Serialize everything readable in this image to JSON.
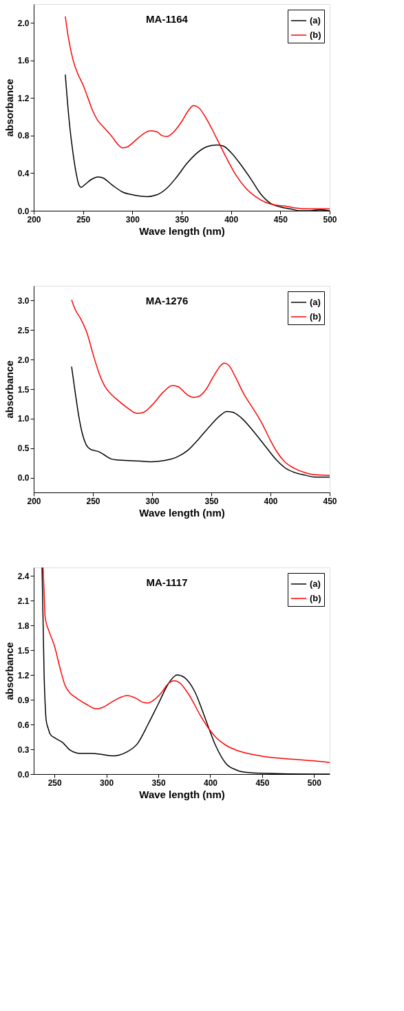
{
  "chart_data": [
    {
      "type": "line",
      "title": "MA-1164",
      "xlabel": "Wave length (nm)",
      "ylabel": "absorbance",
      "xlim": [
        200,
        500
      ],
      "xticks": [
        200,
        250,
        300,
        350,
        400,
        450,
        500
      ],
      "ylim": [
        0,
        2.2
      ],
      "yticks": [
        {
          "value": 0,
          "label": "0.0"
        },
        {
          "value": 0.4,
          "label": "0.4"
        },
        {
          "value": 0.8,
          "label": "0.8"
        },
        {
          "value": 1.2,
          "label": "1.2"
        },
        {
          "value": 1.6,
          "label": "1.6"
        },
        {
          "value": 2.0,
          "label": "2.0"
        }
      ],
      "grid": false,
      "legend": "top right",
      "marker": "none",
      "line_style": "solid",
      "series": [
        {
          "name": "(a)",
          "color": "#000000",
          "x": [
            232,
            236,
            240,
            243,
            246,
            248,
            252,
            258,
            265,
            270,
            280,
            290,
            300,
            315,
            325,
            335,
            345,
            355,
            365,
            375,
            385,
            392,
            400,
            410,
            420,
            430,
            440,
            450,
            460,
            470,
            480,
            490,
            500
          ],
          "values": [
            1.45,
            0.95,
            0.6,
            0.4,
            0.27,
            0.25,
            0.28,
            0.33,
            0.36,
            0.35,
            0.27,
            0.2,
            0.17,
            0.15,
            0.17,
            0.24,
            0.36,
            0.5,
            0.61,
            0.68,
            0.7,
            0.69,
            0.62,
            0.49,
            0.34,
            0.18,
            0.08,
            0.04,
            0.02,
            0.0,
            0.0,
            0.01,
            0.0
          ]
        },
        {
          "name": "(b)",
          "color": "#ff0000",
          "x": [
            232,
            235,
            240,
            245,
            250,
            255,
            260,
            265,
            270,
            280,
            285,
            290,
            295,
            300,
            310,
            318,
            325,
            330,
            335,
            340,
            350,
            357,
            362,
            367,
            375,
            385,
            395,
            405,
            415,
            425,
            435,
            445,
            455,
            465,
            480,
            500
          ],
          "values": [
            2.07,
            1.85,
            1.6,
            1.45,
            1.34,
            1.2,
            1.06,
            0.96,
            0.9,
            0.78,
            0.71,
            0.67,
            0.68,
            0.72,
            0.81,
            0.85,
            0.84,
            0.8,
            0.79,
            0.82,
            0.95,
            1.07,
            1.12,
            1.1,
            0.98,
            0.78,
            0.57,
            0.38,
            0.24,
            0.15,
            0.09,
            0.06,
            0.05,
            0.03,
            0.02,
            0.02
          ]
        }
      ]
    },
    {
      "type": "line",
      "title": "MA-1276",
      "xlabel": "Wave length (nm)",
      "ylabel": "absorbance",
      "xlim": [
        200,
        450
      ],
      "xticks": [
        200,
        250,
        300,
        350,
        400,
        450
      ],
      "ylim": [
        -0.25,
        3.25
      ],
      "yticks": [
        {
          "value": 0,
          "label": "0.0"
        },
        {
          "value": 0.5,
          "label": "0.5"
        },
        {
          "value": 1.0,
          "label": "1.0"
        },
        {
          "value": 1.5,
          "label": "1.5"
        },
        {
          "value": 2.0,
          "label": "2.0"
        },
        {
          "value": 2.5,
          "label": "2.5"
        },
        {
          "value": 3.0,
          "label": "3.0"
        }
      ],
      "grid": false,
      "legend": "top right",
      "marker": "none",
      "line_style": "solid",
      "series": [
        {
          "name": "(a)",
          "color": "#000000",
          "x": [
            232,
            235,
            238,
            241,
            244,
            248,
            255,
            260,
            265,
            270,
            280,
            290,
            300,
            310,
            320,
            330,
            340,
            350,
            358,
            363,
            368,
            375,
            385,
            395,
            405,
            412,
            420,
            430,
            437,
            445,
            450
          ],
          "values": [
            1.88,
            1.45,
            1.05,
            0.75,
            0.57,
            0.48,
            0.44,
            0.38,
            0.32,
            0.3,
            0.29,
            0.28,
            0.27,
            0.29,
            0.34,
            0.46,
            0.67,
            0.9,
            1.06,
            1.12,
            1.11,
            1.02,
            0.8,
            0.55,
            0.3,
            0.17,
            0.09,
            0.04,
            0.01,
            0.01,
            0.01
          ]
        },
        {
          "name": "(b)",
          "color": "#ff0000",
          "x": [
            232,
            235,
            240,
            245,
            250,
            255,
            260,
            265,
            270,
            280,
            287,
            292,
            300,
            310,
            317,
            322,
            330,
            335,
            340,
            345,
            352,
            358,
            361,
            365,
            370,
            378,
            385,
            392,
            400,
            405,
            412,
            420,
            430,
            437,
            450
          ],
          "values": [
            3.01,
            2.85,
            2.68,
            2.45,
            2.1,
            1.78,
            1.55,
            1.42,
            1.33,
            1.17,
            1.09,
            1.1,
            1.23,
            1.46,
            1.56,
            1.54,
            1.4,
            1.36,
            1.38,
            1.48,
            1.72,
            1.9,
            1.94,
            1.9,
            1.72,
            1.4,
            1.18,
            0.95,
            0.63,
            0.45,
            0.27,
            0.16,
            0.08,
            0.05,
            0.04
          ]
        }
      ]
    },
    {
      "type": "line",
      "title": "MA-1117",
      "xlabel": "Wave length (nm)",
      "ylabel": "absorbance",
      "xlim": [
        230,
        515
      ],
      "xticks": [
        250,
        300,
        350,
        400,
        450,
        500
      ],
      "ylim": [
        0,
        2.5
      ],
      "yticks": [
        {
          "value": 0,
          "label": "0.0"
        },
        {
          "value": 0.3,
          "label": "0.3"
        },
        {
          "value": 0.6,
          "label": "0.6"
        },
        {
          "value": 0.9,
          "label": "0.9"
        },
        {
          "value": 1.2,
          "label": "1.2"
        },
        {
          "value": 1.5,
          "label": "1.5"
        },
        {
          "value": 1.8,
          "label": "1.8"
        },
        {
          "value": 2.1,
          "label": "2.1"
        },
        {
          "value": 2.4,
          "label": "2.4"
        }
      ],
      "grid": false,
      "legend": "top right",
      "marker": "none",
      "line_style": "solid",
      "series": [
        {
          "name": "(a)",
          "color": "#000000",
          "x": [
            238,
            240,
            241,
            242,
            244,
            246,
            250,
            258,
            265,
            270,
            275,
            285,
            295,
            305,
            312,
            320,
            330,
            340,
            350,
            360,
            368,
            375,
            385,
            395,
            405,
            415,
            425,
            435,
            450,
            500,
            515
          ],
          "values": [
            2.5,
            1.2,
            0.85,
            0.65,
            0.55,
            0.48,
            0.44,
            0.38,
            0.29,
            0.26,
            0.25,
            0.25,
            0.24,
            0.22,
            0.23,
            0.27,
            0.37,
            0.6,
            0.85,
            1.1,
            1.2,
            1.17,
            1.0,
            0.68,
            0.35,
            0.13,
            0.05,
            0.02,
            0.01,
            0.0,
            0.0
          ]
        },
        {
          "name": "(b)",
          "color": "#ff0000",
          "x": [
            239,
            240,
            241,
            245,
            250,
            255,
            260,
            265,
            270,
            280,
            290,
            295,
            305,
            312,
            320,
            328,
            335,
            340,
            345,
            352,
            360,
            365,
            370,
            380,
            390,
            398,
            405,
            415,
            425,
            440,
            460,
            480,
            500,
            515
          ],
          "values": [
            2.5,
            2.2,
            1.9,
            1.72,
            1.55,
            1.3,
            1.08,
            0.98,
            0.93,
            0.85,
            0.79,
            0.8,
            0.87,
            0.92,
            0.95,
            0.92,
            0.87,
            0.86,
            0.89,
            0.97,
            1.1,
            1.13,
            1.11,
            0.95,
            0.72,
            0.56,
            0.45,
            0.35,
            0.29,
            0.24,
            0.2,
            0.18,
            0.16,
            0.14
          ]
        }
      ]
    }
  ]
}
